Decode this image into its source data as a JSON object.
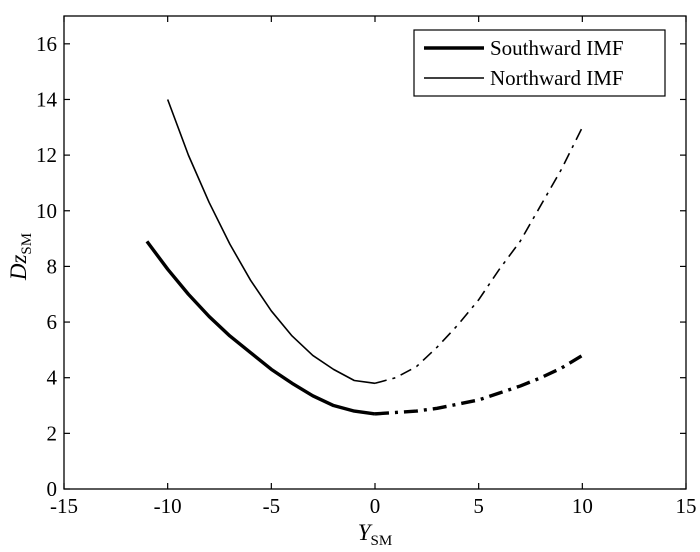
{
  "chart_data": {
    "type": "line",
    "xlabel": "Y",
    "xlabel_sub": "SM",
    "ylabel": "Dz",
    "ylabel_sub": "SM",
    "xlim": [
      -15,
      15
    ],
    "ylim": [
      0,
      17
    ],
    "xticks": [
      -15,
      -10,
      -5,
      0,
      5,
      10,
      15
    ],
    "xtick_labels": [
      "-15",
      "-10",
      "-5",
      "0",
      "5",
      "10",
      "15"
    ],
    "yticks": [
      0,
      2,
      4,
      6,
      8,
      10,
      12,
      14,
      16
    ],
    "ytick_labels": [
      "0",
      "2",
      "4",
      "6",
      "8",
      "10",
      "12",
      "14",
      "16"
    ],
    "grid": false,
    "legend_position": "top-right",
    "series": [
      {
        "name": "Southward IMF",
        "color": "#000000",
        "line_weight": "thick",
        "segments": [
          {
            "style": "solid",
            "x": [
              -11,
              -10,
              -9,
              -8,
              -7,
              -6,
              -5,
              -4,
              -3,
              -2,
              -1,
              0
            ],
            "y": [
              8.9,
              7.9,
              7.0,
              6.2,
              5.5,
              4.9,
              4.3,
              3.8,
              3.35,
              3.0,
              2.8,
              2.7
            ]
          },
          {
            "style": "dashdot",
            "x": [
              0,
              1,
              2,
              3,
              4,
              5,
              6,
              7,
              8,
              9,
              10
            ],
            "y": [
              2.7,
              2.75,
              2.8,
              2.9,
              3.05,
              3.2,
              3.45,
              3.7,
              4.0,
              4.35,
              4.8
            ]
          }
        ]
      },
      {
        "name": "Northward IMF",
        "color": "#000000",
        "line_weight": "thin",
        "segments": [
          {
            "style": "solid",
            "x": [
              -10,
              -9,
              -8,
              -7,
              -6,
              -5,
              -4,
              -3,
              -2,
              -1,
              0
            ],
            "y": [
              14.0,
              12.0,
              10.3,
              8.8,
              7.5,
              6.4,
              5.5,
              4.8,
              4.3,
              3.9,
              3.8
            ]
          },
          {
            "style": "dashdot",
            "x": [
              0,
              1,
              2,
              3,
              4,
              5,
              6,
              7,
              8,
              9,
              10
            ],
            "y": [
              3.8,
              4.0,
              4.4,
              5.1,
              5.9,
              6.8,
              7.9,
              8.9,
              10.2,
              11.5,
              13.0
            ]
          }
        ]
      }
    ]
  }
}
